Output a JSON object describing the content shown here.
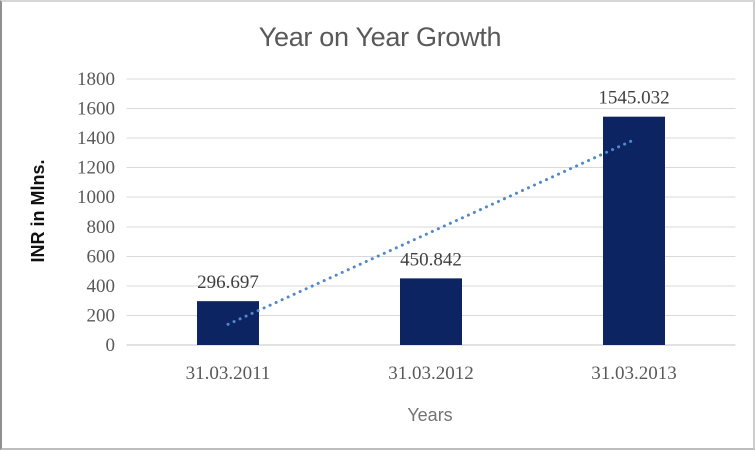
{
  "chart": {
    "title": "Year on Year Growth",
    "y_axis_title": "INR in Mlns.",
    "x_axis_title": "Years",
    "colors": {
      "bar": "#0c2461",
      "trendline": "#5288cc",
      "gridline": "#d9d9d9",
      "axis_line": "#c6c6c6",
      "title_text": "#595959",
      "tick_text": "#595959",
      "data_label_text": "#3f3f3f",
      "y_axis_title_text": "#111111",
      "x_axis_title_text": "#737373",
      "background": "#ffffff"
    }
  },
  "chart_data": {
    "type": "bar",
    "title": "Year on Year Growth",
    "xlabel": "Years",
    "ylabel": "INR in Mlns.",
    "categories": [
      "31.03.2011",
      "31.03.2012",
      "31.03.2013"
    ],
    "values": [
      296.697,
      450.842,
      1545.032
    ],
    "data_labels": [
      "296.697",
      "450.842",
      "1545.032"
    ],
    "ylim": [
      0,
      1800
    ],
    "ytick_step": 200,
    "yticks": [
      "0",
      "200",
      "400",
      "600",
      "800",
      "1000",
      "1200",
      "1400",
      "1600",
      "1800"
    ],
    "grid": true,
    "legend": false,
    "bar_color": "#0c2461",
    "trendline": {
      "type": "linear",
      "style": "dotted",
      "color": "#5288cc",
      "start_value": 140.0,
      "end_value": 1388.4
    }
  }
}
